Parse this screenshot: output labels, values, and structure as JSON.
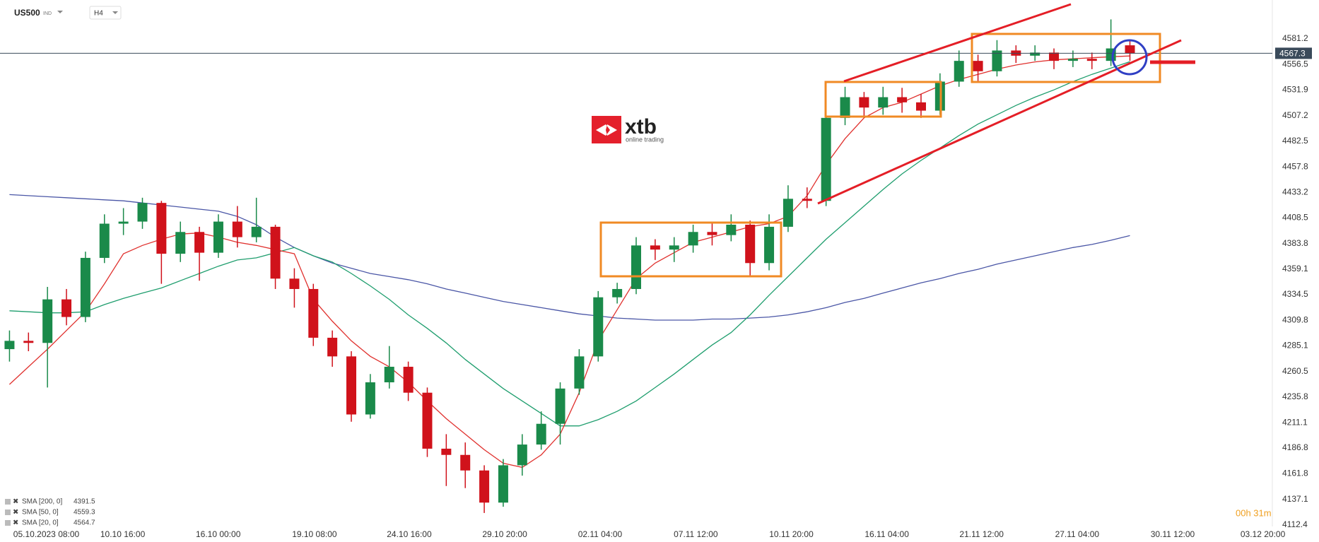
{
  "chart_data": {
    "type": "candlestick",
    "symbol": "US500",
    "market": "IND",
    "timeframe": "H4",
    "logo": "xtb",
    "logo_subtitle": "online trading",
    "countdown": "00h 31m",
    "up_color": "#1a8a4a",
    "down_color": "#d0121b",
    "open": [
      4282,
      4290,
      4288,
      4330,
      4313,
      4370,
      4403,
      4405,
      4423,
      4374,
      4395,
      4375,
      4405,
      4390,
      4400,
      4350,
      4340,
      4293,
      4275,
      4219,
      4250,
      4265,
      4240,
      4186,
      4180,
      4165,
      4134,
      4170,
      4190,
      4210,
      4244,
      4275,
      4332,
      4340,
      4382,
      4378,
      4382,
      4395,
      4392,
      4402,
      4365,
      4400,
      4427,
      4425,
      4505,
      4525,
      4515,
      4525,
      4520,
      4512,
      4540,
      4560,
      4550,
      4570,
      4565,
      4568,
      4560,
      4562,
      4560,
      4575
    ],
    "high": [
      4300,
      4298,
      4342,
      4340,
      4376,
      4412,
      4418,
      4428,
      4425,
      4405,
      4400,
      4412,
      4420,
      4428,
      4402,
      4360,
      4345,
      4300,
      4280,
      4258,
      4285,
      4270,
      4245,
      4200,
      4192,
      4170,
      4176,
      4200,
      4222,
      4250,
      4282,
      4338,
      4346,
      4390,
      4388,
      4390,
      4402,
      4404,
      4412,
      4406,
      4412,
      4440,
      4438,
      4512,
      4535,
      4530,
      4535,
      4534,
      4528,
      4548,
      4570,
      4566,
      4580,
      4575,
      4575,
      4572,
      4570,
      4568,
      4600,
      4580
    ],
    "low": [
      4270,
      4280,
      4245,
      4305,
      4308,
      4365,
      4392,
      4398,
      4345,
      4366,
      4348,
      4370,
      4380,
      4385,
      4340,
      4322,
      4285,
      4265,
      4212,
      4215,
      4244,
      4232,
      4178,
      4150,
      4148,
      4124,
      4130,
      4160,
      4185,
      4190,
      4238,
      4270,
      4326,
      4335,
      4368,
      4366,
      4375,
      4382,
      4386,
      4352,
      4358,
      4395,
      4418,
      4420,
      4498,
      4505,
      4508,
      4510,
      4505,
      4508,
      4535,
      4540,
      4545,
      4558,
      4560,
      4552,
      4554,
      4552,
      4555,
      4560
    ],
    "close": [
      4290,
      4288,
      4330,
      4313,
      4370,
      4403,
      4405,
      4423,
      4374,
      4395,
      4375,
      4405,
      4390,
      4400,
      4350,
      4340,
      4293,
      4275,
      4219,
      4250,
      4265,
      4240,
      4186,
      4180,
      4165,
      4134,
      4170,
      4190,
      4210,
      4244,
      4275,
      4332,
      4340,
      4382,
      4378,
      4382,
      4395,
      4392,
      4402,
      4365,
      4400,
      4427,
      4425,
      4505,
      4525,
      4515,
      4525,
      4520,
      4512,
      4540,
      4560,
      4550,
      4570,
      4565,
      4568,
      4560,
      4562,
      4560,
      4572,
      4567.3
    ],
    "series": [
      {
        "name": "SMA [200, 0]",
        "color": "#4a56a6",
        "values": [
          4431,
          4430,
          4429,
          4428,
          4427,
          4426,
          4425,
          4423,
          4421,
          4419,
          4417,
          4415,
          4410,
          4402,
          4390,
          4380,
          4372,
          4365,
          4360,
          4355,
          4352,
          4349,
          4345,
          4340,
          4336,
          4332,
          4328,
          4325,
          4322,
          4319,
          4316,
          4314,
          4312,
          4311,
          4310,
          4310,
          4310,
          4311,
          4311,
          4312,
          4313,
          4315,
          4318,
          4322,
          4327,
          4331,
          4336,
          4341,
          4346,
          4350,
          4355,
          4359,
          4364,
          4368,
          4372,
          4376,
          4380,
          4383,
          4387,
          4391.5
        ]
      },
      {
        "name": "SMA [50, 0]",
        "color": "#1f9e6e",
        "values": [
          4319,
          4318,
          4317,
          4317,
          4318,
          4325,
          4331,
          4336,
          4341,
          4348,
          4355,
          4362,
          4368,
          4370,
          4375,
          4380,
          4372,
          4366,
          4355,
          4343,
          4330,
          4315,
          4302,
          4288,
          4272,
          4258,
          4244,
          4232,
          4220,
          4208,
          4208,
          4214,
          4222,
          4232,
          4245,
          4258,
          4272,
          4286,
          4298,
          4315,
          4334,
          4352,
          4370,
          4388,
          4404,
          4420,
          4436,
          4451,
          4464,
          4476,
          4488,
          4499,
          4508,
          4517,
          4525,
          4532,
          4540,
          4547,
          4553,
          4559.3
        ]
      },
      {
        "name": "SMA [20, 0]",
        "color": "#e0312e",
        "values": [
          4248,
          4265,
          4282,
          4300,
          4318,
          4345,
          4374,
          4382,
          4388,
          4393,
          4394,
          4390,
          4385,
          4382,
          4378,
          4374,
          4330,
          4309,
          4290,
          4275,
          4265,
          4250,
          4232,
          4215,
          4200,
          4185,
          4172,
          4168,
          4180,
          4200,
          4240,
          4290,
          4320,
          4350,
          4365,
          4375,
          4385,
          4390,
          4395,
          4400,
          4403,
          4410,
          4430,
          4460,
          4485,
          4505,
          4515,
          4520,
          4528,
          4536,
          4542,
          4547,
          4552,
          4556,
          4559,
          4561,
          4562,
          4563,
          4564,
          4564.7
        ]
      }
    ],
    "xlim": [
      -0.5,
      66.5
    ],
    "xticks": [
      {
        "value": 0.2,
        "label": "05.10.2023 08:00"
      },
      {
        "value": 5.96,
        "label": "10.10 16:00"
      },
      {
        "value": 10.99,
        "label": "16.10 00:00"
      },
      {
        "value": 16.06,
        "label": "19.10 08:00"
      },
      {
        "value": 21.05,
        "label": "24.10 16:00"
      },
      {
        "value": 26.08,
        "label": "29.10 20:00"
      },
      {
        "value": 31.1,
        "label": "02.11 04:00"
      },
      {
        "value": 36.14,
        "label": "07.11 12:00"
      },
      {
        "value": 41.17,
        "label": "10.11 20:00"
      },
      {
        "value": 46.2,
        "label": "16.11 04:00"
      },
      {
        "value": 51.19,
        "label": "21.11 12:00"
      },
      {
        "value": 56.22,
        "label": "27.11 04:00"
      },
      {
        "value": 61.25,
        "label": "30.11 12:00"
      },
      {
        "value": 66.0,
        "label": "03.12 20:00"
      }
    ],
    "ylim": [
      4111.0,
      4618.7
    ],
    "yticks": [
      4581.2,
      4556.5,
      4531.9,
      4507.2,
      4482.5,
      4457.8,
      4433.2,
      4408.5,
      4383.8,
      4359.1,
      4334.5,
      4309.8,
      4285.1,
      4260.5,
      4235.8,
      4211.1,
      4186.8,
      4161.8,
      4137.1,
      4112.4
    ]
  }
}
